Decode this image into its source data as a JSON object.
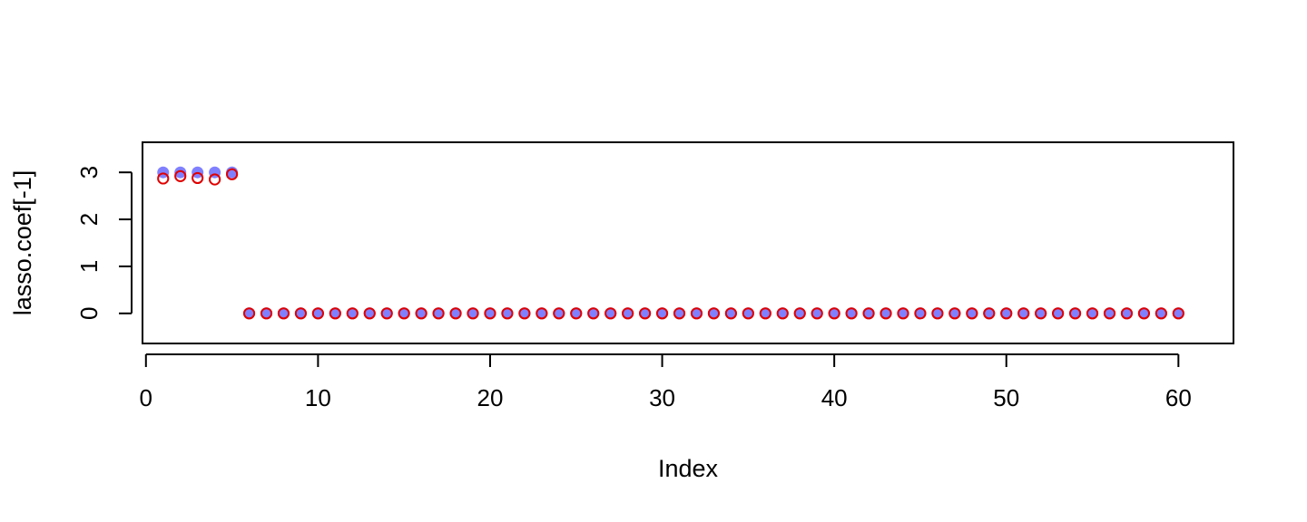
{
  "chart_data": {
    "type": "scatter",
    "title": "",
    "xlabel": "Index",
    "ylabel": "lasso.coef[-1]",
    "xlim": [
      -0.2,
      63.2
    ],
    "ylim": [
      -0.64,
      3.64
    ],
    "xticks": [
      0,
      10,
      20,
      30,
      40,
      50,
      60
    ],
    "yticks": [
      0,
      1,
      2,
      3
    ],
    "grid": false,
    "legend": "none",
    "series": [
      {
        "marker": "filled-circle",
        "color": "#8080ff",
        "x": [
          1,
          2,
          3,
          4,
          5,
          6,
          7,
          8,
          9,
          10,
          11,
          12,
          13,
          14,
          15,
          16,
          17,
          18,
          19,
          20,
          21,
          22,
          23,
          24,
          25,
          26,
          27,
          28,
          29,
          30,
          31,
          32,
          33,
          34,
          35,
          36,
          37,
          38,
          39,
          40,
          41,
          42,
          43,
          44,
          45,
          46,
          47,
          48,
          49,
          50,
          51,
          52,
          53,
          54,
          55,
          56,
          57,
          58,
          59,
          60
        ],
        "y": [
          3,
          3,
          3,
          3,
          3,
          0,
          0,
          0,
          0,
          0,
          0,
          0,
          0,
          0,
          0,
          0,
          0,
          0,
          0,
          0,
          0,
          0,
          0,
          0,
          0,
          0,
          0,
          0,
          0,
          0,
          0,
          0,
          0,
          0,
          0,
          0,
          0,
          0,
          0,
          0,
          0,
          0,
          0,
          0,
          0,
          0,
          0,
          0,
          0,
          0,
          0,
          0,
          0,
          0,
          0,
          0,
          0,
          0,
          0,
          0
        ]
      },
      {
        "marker": "open-circle",
        "color": "#e00000",
        "x": [
          1,
          2,
          3,
          4,
          5,
          6,
          7,
          8,
          9,
          10,
          11,
          12,
          13,
          14,
          15,
          16,
          17,
          18,
          19,
          20,
          21,
          22,
          23,
          24,
          25,
          26,
          27,
          28,
          29,
          30,
          31,
          32,
          33,
          34,
          35,
          36,
          37,
          38,
          39,
          40,
          41,
          42,
          43,
          44,
          45,
          46,
          47,
          48,
          49,
          50,
          51,
          52,
          53,
          54,
          55,
          56,
          57,
          58,
          59,
          60
        ],
        "y": [
          2.87,
          2.92,
          2.88,
          2.85,
          2.96,
          0,
          0,
          0,
          0,
          0,
          0,
          0,
          0,
          0,
          0,
          0,
          0,
          0,
          0,
          0,
          0,
          0,
          0,
          0,
          0,
          0,
          0,
          0,
          0,
          0,
          0,
          0,
          0,
          0,
          0,
          0,
          0,
          0,
          0,
          0,
          0,
          0,
          0,
          0,
          0,
          0,
          0,
          0,
          0,
          0,
          0,
          0,
          0,
          0,
          0,
          0,
          0,
          0,
          0,
          0
        ]
      }
    ]
  }
}
